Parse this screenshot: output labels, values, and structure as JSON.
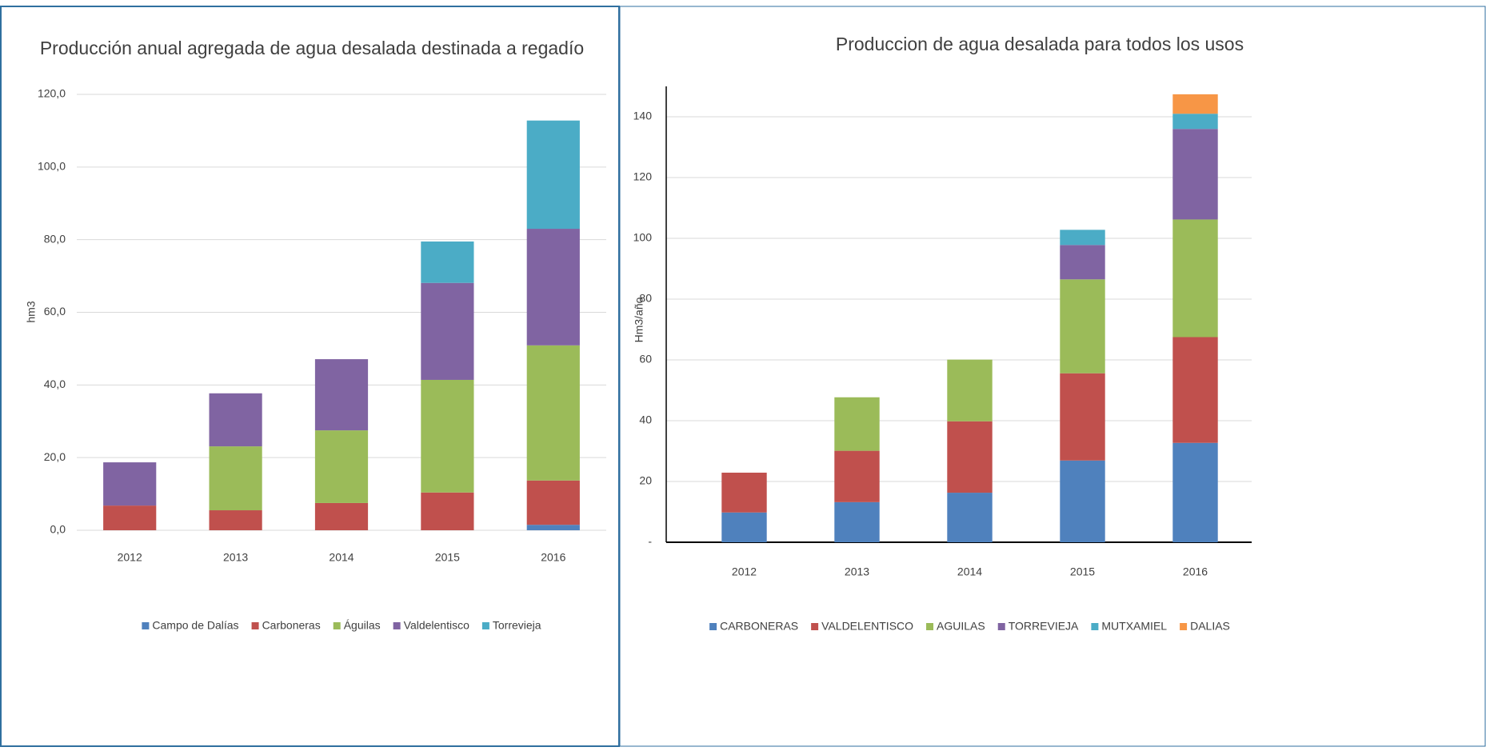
{
  "chart_data": [
    {
      "type": "bar",
      "stacked": true,
      "title": "Producción anual agregada de agua desalada destinada a regadío",
      "y_label": "hm3",
      "categories": [
        "2012",
        "2013",
        "2014",
        "2015",
        "2016"
      ],
      "series": [
        {
          "name": "Campo de Dalías",
          "color": "#4f81bd",
          "values": [
            0,
            0,
            0,
            0,
            1.5
          ]
        },
        {
          "name": "Carboneras",
          "color": "#c0504d",
          "values": [
            6.8,
            5.5,
            7.5,
            10.4,
            12.2
          ]
        },
        {
          "name": "Águilas",
          "color": "#9bbb59",
          "values": [
            0,
            17.6,
            20.0,
            31.0,
            37.2
          ]
        },
        {
          "name": "Valdelentisco",
          "color": "#8064a2",
          "values": [
            11.9,
            14.6,
            19.6,
            26.7,
            32.1
          ]
        },
        {
          "name": "Torrevieja",
          "color": "#4bacc6",
          "values": [
            0,
            0,
            0,
            11.4,
            29.8
          ]
        }
      ],
      "ylim": [
        0,
        120
      ],
      "yticks": [
        {
          "value": 0,
          "label": "0,0"
        },
        {
          "value": 20,
          "label": "20,0"
        },
        {
          "value": 40,
          "label": "40,0"
        },
        {
          "value": 60,
          "label": "60,0"
        },
        {
          "value": 80,
          "label": "80,0"
        },
        {
          "value": 100,
          "label": "100,0"
        },
        {
          "value": 120,
          "label": "120,0"
        }
      ],
      "grid": true
    },
    {
      "type": "bar",
      "stacked": true,
      "title": "Produccion de agua desalada para todos los usos",
      "y_label": "Hm3/año",
      "categories": [
        "2012",
        "2013",
        "2014",
        "2015",
        "2016"
      ],
      "series": [
        {
          "name": "CARBONERAS",
          "color": "#4f81bd",
          "values": [
            9.8,
            13.2,
            16.3,
            26.9,
            32.7
          ]
        },
        {
          "name": "VALDELENTISCO",
          "color": "#c0504d",
          "values": [
            13.1,
            16.9,
            23.5,
            28.7,
            34.8
          ]
        },
        {
          "name": "AGUILAS",
          "color": "#9bbb59",
          "values": [
            0,
            17.6,
            20.3,
            30.9,
            38.7
          ]
        },
        {
          "name": "TORREVIEJA",
          "color": "#8064a2",
          "values": [
            0,
            0,
            0,
            11.3,
            29.8
          ]
        },
        {
          "name": "MUTXAMIEL",
          "color": "#4bacc6",
          "values": [
            0,
            0,
            0,
            5.0,
            5.0
          ]
        },
        {
          "name": "DALIAS",
          "color": "#f79646",
          "values": [
            0,
            0,
            0,
            0,
            6.4
          ]
        }
      ],
      "ylim": [
        0,
        150
      ],
      "yticks": [
        {
          "value": 0,
          "label": "-"
        },
        20,
        40,
        60,
        80,
        100,
        120,
        140
      ],
      "grid": true
    }
  ]
}
